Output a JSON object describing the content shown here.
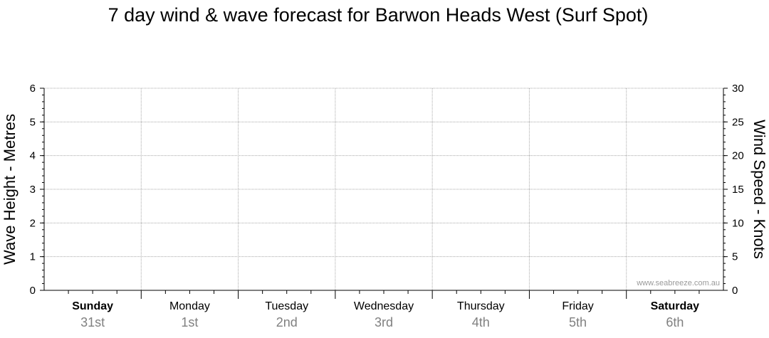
{
  "chart_data": {
    "type": "line",
    "title": "7 day wind & wave forecast for Barwon Heads West (Surf Spot)",
    "y_left": {
      "label": "Wave Height - Metres",
      "range": [
        0,
        6
      ],
      "ticks": [
        "0",
        "1",
        "2",
        "3",
        "4",
        "5",
        "6"
      ]
    },
    "y_right": {
      "label": "Wind Speed - Knots",
      "range": [
        0,
        30
      ],
      "ticks": [
        "0",
        "5",
        "10",
        "15",
        "20",
        "25",
        "30"
      ]
    },
    "x": {
      "days": [
        {
          "name": "Sunday",
          "date": "31st",
          "bold": true
        },
        {
          "name": "Monday",
          "date": "1st",
          "bold": false
        },
        {
          "name": "Tuesday",
          "date": "2nd",
          "bold": false
        },
        {
          "name": "Wednesday",
          "date": "3rd",
          "bold": false
        },
        {
          "name": "Thursday",
          "date": "4th",
          "bold": false
        },
        {
          "name": "Friday",
          "date": "5th",
          "bold": false
        },
        {
          "name": "Saturday",
          "date": "6th",
          "bold": true
        }
      ]
    },
    "series": [],
    "grid": true,
    "watermark": "www.seabreeze.com.au"
  }
}
